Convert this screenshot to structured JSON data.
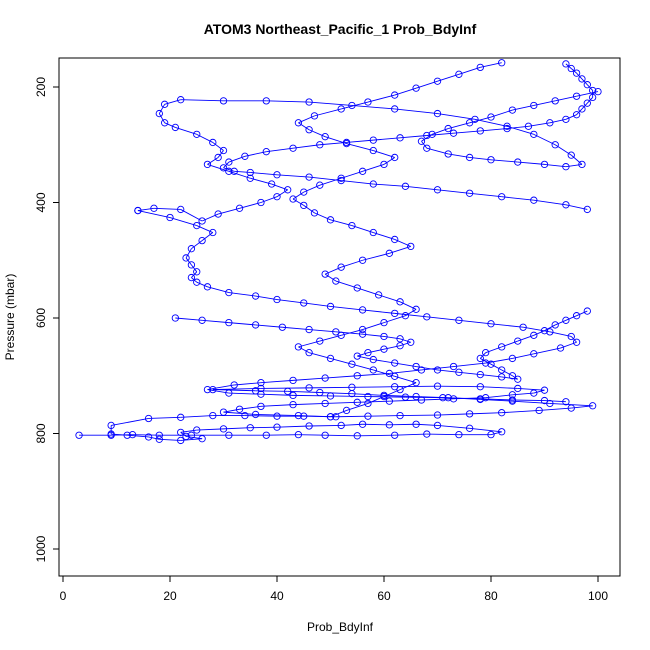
{
  "chart_data": {
    "type": "scatter",
    "title": "ATOM3 Northeast_Pacific_1 Prob_BdyInf",
    "xlabel": "Prob_BdyInf",
    "ylabel": "Pressure (mbar)",
    "xlim": [
      0,
      100
    ],
    "ylim": [
      1040,
      155
    ],
    "y_reversed": true,
    "x_ticks": [
      0,
      20,
      40,
      60,
      80,
      100
    ],
    "y_ticks": [
      200,
      400,
      600,
      800,
      1000
    ],
    "grid": false,
    "legend": "none",
    "series_color": "#0000ff",
    "marker": "open-circle",
    "connected_lines": true,
    "series": [
      {
        "points": [
          [
            3,
            803
          ],
          [
            9,
            803
          ],
          [
            13,
            802
          ],
          [
            18,
            803
          ],
          [
            24,
            803
          ],
          [
            31,
            803
          ],
          [
            38,
            803
          ],
          [
            44,
            802
          ],
          [
            49,
            803
          ],
          [
            55,
            804
          ],
          [
            62,
            803
          ],
          [
            68,
            801
          ],
          [
            74,
            802
          ],
          [
            80,
            802
          ],
          [
            82,
            797
          ],
          [
            76,
            791
          ],
          [
            70,
            786
          ],
          [
            66,
            784
          ],
          [
            61,
            785
          ],
          [
            56,
            784
          ],
          [
            52,
            786
          ],
          [
            46,
            787
          ],
          [
            40,
            789
          ],
          [
            35,
            790
          ],
          [
            30,
            792
          ],
          [
            25,
            794
          ],
          [
            22,
            798
          ],
          [
            23,
            805
          ],
          [
            26,
            809
          ],
          [
            22,
            812
          ],
          [
            18,
            810
          ],
          [
            16,
            806
          ],
          [
            12,
            803
          ],
          [
            9,
            801
          ],
          [
            9,
            786
          ],
          [
            16,
            774
          ],
          [
            22,
            772
          ],
          [
            28,
            769
          ],
          [
            34,
            769
          ],
          [
            40,
            770
          ],
          [
            45,
            770
          ],
          [
            51,
            771
          ],
          [
            57,
            770
          ],
          [
            63,
            769
          ],
          [
            70,
            768
          ],
          [
            76,
            766
          ],
          [
            82,
            764
          ],
          [
            89,
            760
          ],
          [
            95,
            756
          ],
          [
            99,
            752
          ],
          [
            91,
            748
          ],
          [
            84,
            744
          ],
          [
            78,
            741
          ],
          [
            72,
            738
          ],
          [
            66,
            736
          ],
          [
            60,
            734
          ],
          [
            54,
            731
          ],
          [
            48,
            729
          ],
          [
            42,
            727
          ],
          [
            36,
            726
          ],
          [
            28,
            724
          ],
          [
            37,
            722
          ],
          [
            46,
            721
          ],
          [
            54,
            720
          ],
          [
            62,
            719
          ],
          [
            70,
            718
          ],
          [
            78,
            719
          ],
          [
            85,
            722
          ],
          [
            90,
            725
          ],
          [
            88,
            730
          ],
          [
            84,
            733
          ],
          [
            79,
            738
          ],
          [
            73,
            740
          ],
          [
            67,
            742
          ],
          [
            61,
            744
          ],
          [
            55,
            746
          ],
          [
            49,
            748
          ],
          [
            43,
            750
          ],
          [
            37,
            753
          ],
          [
            33,
            758
          ],
          [
            30,
            763
          ],
          [
            36,
            767
          ],
          [
            44,
            769
          ],
          [
            50,
            771
          ]
        ]
      },
      {
        "points": [
          [
            50,
            771
          ],
          [
            53,
            760
          ],
          [
            57,
            748
          ],
          [
            60,
            736
          ],
          [
            63,
            724
          ],
          [
            66,
            712
          ],
          [
            62,
            701
          ],
          [
            58,
            690
          ],
          [
            54,
            680
          ],
          [
            50,
            670
          ],
          [
            46,
            660
          ],
          [
            44,
            650
          ],
          [
            48,
            640
          ],
          [
            52,
            630
          ],
          [
            56,
            620
          ],
          [
            60,
            608
          ],
          [
            64,
            596
          ],
          [
            66,
            585
          ],
          [
            63,
            572
          ],
          [
            59,
            560
          ],
          [
            55,
            548
          ],
          [
            51,
            536
          ],
          [
            49,
            524
          ],
          [
            52,
            512
          ],
          [
            56,
            500
          ],
          [
            61,
            488
          ],
          [
            65,
            476
          ],
          [
            62,
            464
          ],
          [
            58,
            452
          ],
          [
            54,
            440
          ],
          [
            50,
            430
          ],
          [
            47,
            418
          ],
          [
            45,
            405
          ],
          [
            43,
            394
          ],
          [
            45,
            382
          ],
          [
            48,
            370
          ],
          [
            52,
            358
          ],
          [
            56,
            346
          ],
          [
            60,
            334
          ],
          [
            62,
            322
          ],
          [
            58,
            310
          ],
          [
            53,
            298
          ],
          [
            49,
            286
          ],
          [
            46,
            274
          ],
          [
            44,
            262
          ],
          [
            47,
            250
          ],
          [
            52,
            238
          ],
          [
            57,
            226
          ],
          [
            62,
            214
          ],
          [
            66,
            202
          ],
          [
            70,
            190
          ],
          [
            74,
            178
          ],
          [
            78,
            166
          ],
          [
            82,
            158
          ]
        ]
      },
      {
        "points": [
          [
            100,
            208
          ],
          [
            96,
            216
          ],
          [
            92,
            224
          ],
          [
            88,
            232
          ],
          [
            84,
            240
          ],
          [
            80,
            252
          ],
          [
            76,
            262
          ],
          [
            72,
            272
          ],
          [
            69,
            282
          ],
          [
            67,
            294
          ],
          [
            68,
            306
          ],
          [
            72,
            316
          ],
          [
            76,
            322
          ],
          [
            80,
            326
          ],
          [
            85,
            330
          ],
          [
            90,
            334
          ],
          [
            94,
            338
          ],
          [
            97,
            334
          ],
          [
            95,
            318
          ],
          [
            92,
            300
          ],
          [
            88,
            282
          ],
          [
            83,
            268
          ],
          [
            77,
            256
          ],
          [
            70,
            246
          ],
          [
            62,
            238
          ],
          [
            54,
            232
          ],
          [
            46,
            226
          ],
          [
            38,
            224
          ],
          [
            30,
            224
          ],
          [
            22,
            222
          ],
          [
            19,
            230
          ],
          [
            18,
            246
          ],
          [
            19,
            262
          ],
          [
            21,
            270
          ],
          [
            25,
            282
          ],
          [
            28,
            296
          ],
          [
            30,
            310
          ],
          [
            29,
            322
          ],
          [
            27,
            334
          ],
          [
            31,
            346
          ],
          [
            35,
            358
          ],
          [
            39,
            368
          ],
          [
            42,
            378
          ],
          [
            40,
            390
          ],
          [
            37,
            400
          ],
          [
            33,
            410
          ],
          [
            29,
            420
          ],
          [
            26,
            432
          ],
          [
            22,
            412
          ],
          [
            17,
            410
          ],
          [
            14,
            414
          ]
        ]
      },
      {
        "points": [
          [
            14,
            414
          ],
          [
            20,
            426
          ],
          [
            25,
            440
          ],
          [
            28,
            452
          ],
          [
            26,
            466
          ],
          [
            24,
            480
          ],
          [
            23,
            496
          ],
          [
            24,
            508
          ],
          [
            25,
            520
          ],
          [
            24,
            530
          ],
          [
            25,
            538
          ],
          [
            27,
            546
          ],
          [
            31,
            556
          ],
          [
            36,
            562
          ],
          [
            40,
            568
          ],
          [
            45,
            574
          ],
          [
            50,
            580
          ],
          [
            56,
            586
          ],
          [
            62,
            592
          ],
          [
            68,
            598
          ],
          [
            74,
            604
          ],
          [
            80,
            610
          ],
          [
            86,
            616
          ],
          [
            91,
            624
          ],
          [
            95,
            632
          ],
          [
            96,
            642
          ],
          [
            93,
            652
          ],
          [
            88,
            662
          ],
          [
            84,
            670
          ],
          [
            79,
            678
          ],
          [
            73,
            684
          ],
          [
            67,
            690
          ],
          [
            61,
            696
          ],
          [
            55,
            700
          ],
          [
            49,
            704
          ],
          [
            43,
            708
          ],
          [
            37,
            712
          ],
          [
            32,
            716
          ],
          [
            27,
            724
          ],
          [
            31,
            730
          ],
          [
            37,
            732
          ],
          [
            43,
            734
          ],
          [
            50,
            735
          ],
          [
            57,
            736
          ],
          [
            64,
            737
          ],
          [
            71,
            738
          ],
          [
            78,
            740
          ],
          [
            84,
            742
          ],
          [
            90,
            743
          ],
          [
            94,
            745
          ]
        ]
      },
      {
        "points": [
          [
            21,
            600
          ],
          [
            26,
            604
          ],
          [
            31,
            608
          ],
          [
            36,
            612
          ],
          [
            41,
            616
          ],
          [
            46,
            620
          ],
          [
            51,
            624
          ],
          [
            56,
            628
          ],
          [
            60,
            632
          ],
          [
            63,
            636
          ],
          [
            65,
            642
          ],
          [
            63,
            648
          ],
          [
            60,
            654
          ],
          [
            57,
            660
          ],
          [
            55,
            666
          ],
          [
            58,
            672
          ],
          [
            62,
            678
          ],
          [
            66,
            684
          ],
          [
            70,
            690
          ],
          [
            74,
            694
          ],
          [
            78,
            698
          ],
          [
            82,
            702
          ],
          [
            85,
            706
          ],
          [
            84,
            700
          ],
          [
            82,
            690
          ],
          [
            80,
            680
          ],
          [
            78,
            670
          ],
          [
            79,
            660
          ],
          [
            82,
            650
          ],
          [
            85,
            640
          ],
          [
            88,
            630
          ],
          [
            90,
            622
          ],
          [
            92,
            612
          ],
          [
            94,
            604
          ],
          [
            96,
            596
          ],
          [
            98,
            588
          ]
        ]
      },
      {
        "points": [
          [
            98,
            412
          ],
          [
            94,
            404
          ],
          [
            88,
            396
          ],
          [
            82,
            390
          ],
          [
            76,
            384
          ],
          [
            70,
            378
          ],
          [
            64,
            372
          ],
          [
            58,
            368
          ],
          [
            52,
            362
          ],
          [
            46,
            356
          ],
          [
            40,
            352
          ],
          [
            35,
            348
          ],
          [
            32,
            346
          ],
          [
            30,
            340
          ],
          [
            31,
            330
          ],
          [
            34,
            320
          ],
          [
            38,
            312
          ],
          [
            43,
            306
          ],
          [
            48,
            300
          ],
          [
            53,
            296
          ],
          [
            58,
            292
          ],
          [
            63,
            288
          ],
          [
            68,
            284
          ],
          [
            73,
            280
          ],
          [
            78,
            276
          ],
          [
            83,
            272
          ],
          [
            87,
            268
          ],
          [
            91,
            262
          ],
          [
            94,
            256
          ],
          [
            96,
            248
          ],
          [
            97,
            238
          ],
          [
            98,
            228
          ],
          [
            99,
            218
          ],
          [
            99,
            206
          ],
          [
            98,
            196
          ],
          [
            97,
            186
          ],
          [
            96,
            176
          ],
          [
            95,
            168
          ],
          [
            94,
            160
          ]
        ]
      }
    ]
  }
}
